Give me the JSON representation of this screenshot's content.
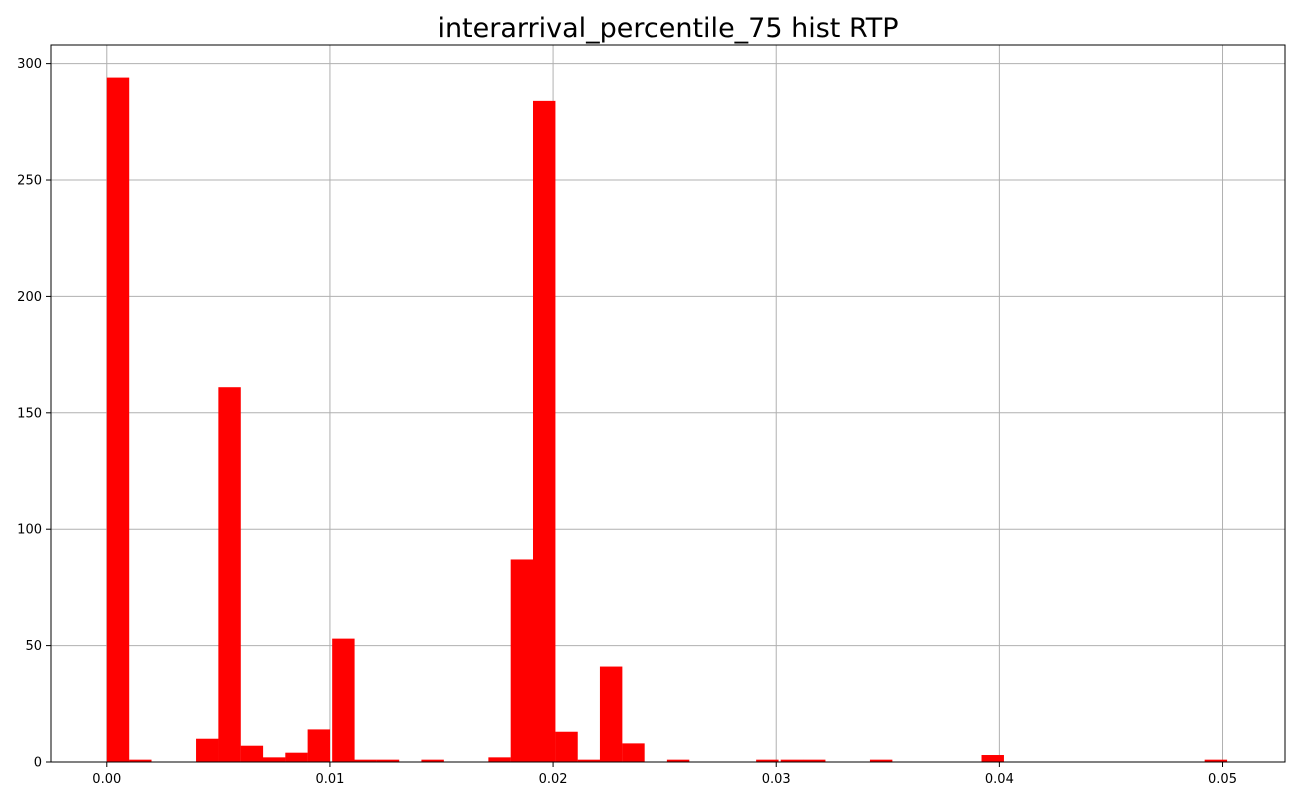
{
  "chart_data": {
    "type": "bar",
    "title": "interarrival_percentile_75 hist RTP",
    "xlabel": "",
    "ylabel": "",
    "xlim": [
      -0.0025,
      0.0528
    ],
    "ylim": [
      0,
      308
    ],
    "grid": true,
    "bar_color": "#ff0000",
    "bin_width": 0.001005,
    "x_ticks": [
      0.0,
      0.01,
      0.02,
      0.03,
      0.04,
      0.05
    ],
    "x_tick_labels": [
      "0.00",
      "0.01",
      "0.02",
      "0.03",
      "0.04",
      "0.05"
    ],
    "y_ticks": [
      0,
      50,
      100,
      150,
      200,
      250,
      300
    ],
    "y_tick_labels": [
      "0",
      "50",
      "100",
      "150",
      "200",
      "250",
      "300"
    ],
    "bins": [
      {
        "x": 0.0,
        "value": 294
      },
      {
        "x": 0.001,
        "value": 1
      },
      {
        "x": 0.004,
        "value": 10
      },
      {
        "x": 0.005,
        "value": 161
      },
      {
        "x": 0.006,
        "value": 7
      },
      {
        "x": 0.007,
        "value": 2
      },
      {
        "x": 0.008,
        "value": 4
      },
      {
        "x": 0.009,
        "value": 14
      },
      {
        "x": 0.0101,
        "value": 53
      },
      {
        "x": 0.0111,
        "value": 1
      },
      {
        "x": 0.0121,
        "value": 1
      },
      {
        "x": 0.0141,
        "value": 1
      },
      {
        "x": 0.0171,
        "value": 2
      },
      {
        "x": 0.0181,
        "value": 87
      },
      {
        "x": 0.0191,
        "value": 284
      },
      {
        "x": 0.0201,
        "value": 13
      },
      {
        "x": 0.0211,
        "value": 1
      },
      {
        "x": 0.0221,
        "value": 41
      },
      {
        "x": 0.0231,
        "value": 8
      },
      {
        "x": 0.0251,
        "value": 1
      },
      {
        "x": 0.0291,
        "value": 1
      },
      {
        "x": 0.0302,
        "value": 1
      },
      {
        "x": 0.0312,
        "value": 1
      },
      {
        "x": 0.0342,
        "value": 1
      },
      {
        "x": 0.0392,
        "value": 3
      },
      {
        "x": 0.0492,
        "value": 1
      }
    ]
  }
}
